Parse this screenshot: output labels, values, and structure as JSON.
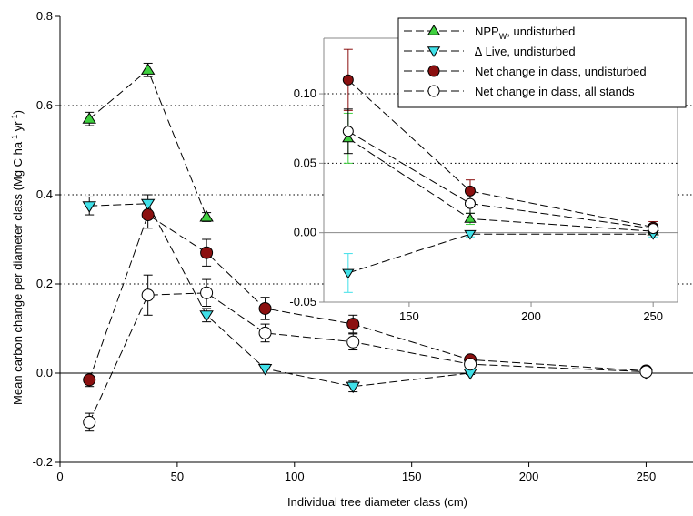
{
  "chart_data": [
    {
      "type": "line",
      "panel": "main",
      "title": "",
      "xlabel": "Individual tree diameter class (cm)",
      "ylabel": "Mean carbon change per diameter class (Mg C ha",
      "ylabel_sup1": "-1",
      "ylabel_mid": " yr",
      "ylabel_sup2": "-1",
      "ylabel_end": ")",
      "xlim": [
        0,
        270
      ],
      "ylim": [
        -0.2,
        0.8
      ],
      "xticks": [
        0,
        50,
        100,
        150,
        200,
        250
      ],
      "yticks": [
        -0.2,
        0.0,
        0.2,
        0.4,
        0.6,
        0.8
      ],
      "xtick_labels": [
        "0",
        "50",
        "100",
        "150",
        "200",
        "250"
      ],
      "ytick_labels": [
        "-0.2",
        "0.0",
        "0.2",
        "0.4",
        "0.6",
        "0.8"
      ],
      "reference_lines": [
        0.2,
        0.4,
        0.6
      ],
      "series": [
        {
          "name": "NPP_w, undisturbed",
          "marker": "triangle-up",
          "color": "#3fd03f",
          "x": [
            12.5,
            37.5,
            62.5
          ],
          "y": [
            0.57,
            0.68,
            0.35
          ],
          "err": [
            0.015,
            0.015,
            0.01
          ]
        },
        {
          "name": "Δ Live, undisturbed",
          "marker": "triangle-down",
          "color": "#40e0e8",
          "x": [
            12.5,
            37.5,
            62.5,
            87.5,
            125,
            175,
            250
          ],
          "y": [
            0.375,
            0.38,
            0.13,
            0.01,
            -0.03,
            0.0,
            0.0
          ],
          "err": [
            0.02,
            0.02,
            0.015,
            0.01,
            0.012,
            0.003,
            0.002
          ]
        },
        {
          "name": "Net change in class, undisturbed",
          "marker": "circle",
          "color": "#8b1010",
          "x": [
            12.5,
            37.5,
            62.5,
            87.5,
            125,
            175,
            250
          ],
          "y": [
            -0.015,
            0.355,
            0.27,
            0.145,
            0.11,
            0.03,
            0.005
          ],
          "err": [
            0.015,
            0.03,
            0.03,
            0.025,
            0.02,
            0.008,
            0.005
          ]
        },
        {
          "name": "Net change in class, all stands",
          "marker": "circle-open",
          "color": "#ffffff",
          "x": [
            12.5,
            37.5,
            62.5,
            87.5,
            125,
            175,
            250
          ],
          "y": [
            -0.11,
            0.175,
            0.18,
            0.09,
            0.07,
            0.02,
            0.003
          ],
          "err": [
            0.02,
            0.045,
            0.03,
            0.02,
            0.018,
            0.01,
            0.004
          ]
        }
      ],
      "legend": {
        "placement": "top-right",
        "entries": [
          {
            "base": "NPP",
            "sub": "W",
            "tail": ", undisturbed"
          },
          {
            "base": "∆ Live, undisturbed",
            "sub": "",
            "tail": ""
          },
          {
            "base": "Net change in class, undisturbed",
            "sub": "",
            "tail": ""
          },
          {
            "base": "Net change in class, all stands",
            "sub": "",
            "tail": ""
          }
        ]
      }
    },
    {
      "type": "line",
      "panel": "inset",
      "title": "",
      "xlabel": "",
      "ylabel": "",
      "xlim": [
        115,
        260
      ],
      "ylim": [
        -0.05,
        0.14
      ],
      "xticks": [
        150,
        200,
        250
      ],
      "yticks": [
        -0.05,
        0.0,
        0.05,
        0.1
      ],
      "xtick_labels": [
        "150",
        "200",
        "250"
      ],
      "ytick_labels": [
        "-0.05",
        "0.00",
        "0.05",
        "0.10"
      ],
      "reference_lines": [
        0.05,
        0.1
      ],
      "series": [
        {
          "name": "NPP_w, undisturbed",
          "marker": "triangle-up",
          "color": "#3fd03f",
          "x": [
            125,
            175,
            250
          ],
          "y": [
            0.068,
            0.01,
            0.001
          ],
          "err": [
            0.018,
            0.004,
            0.002
          ]
        },
        {
          "name": "Δ Live, undisturbed",
          "marker": "triangle-down",
          "color": "#40e0e8",
          "x": [
            125,
            175,
            250
          ],
          "y": [
            -0.029,
            -0.001,
            -0.001
          ],
          "err": [
            0.014,
            0.002,
            0.002
          ]
        },
        {
          "name": "Net change in class, undisturbed",
          "marker": "circle",
          "color": "#8b1010",
          "x": [
            125,
            175,
            250
          ],
          "y": [
            0.11,
            0.03,
            0.004
          ],
          "err": [
            0.022,
            0.008,
            0.004
          ]
        },
        {
          "name": "Net change in class, all stands",
          "marker": "circle-open",
          "color": "#ffffff",
          "x": [
            125,
            175,
            250
          ],
          "y": [
            0.073,
            0.021,
            0.003
          ],
          "err": [
            0.016,
            0.007,
            0.003
          ]
        }
      ]
    }
  ]
}
